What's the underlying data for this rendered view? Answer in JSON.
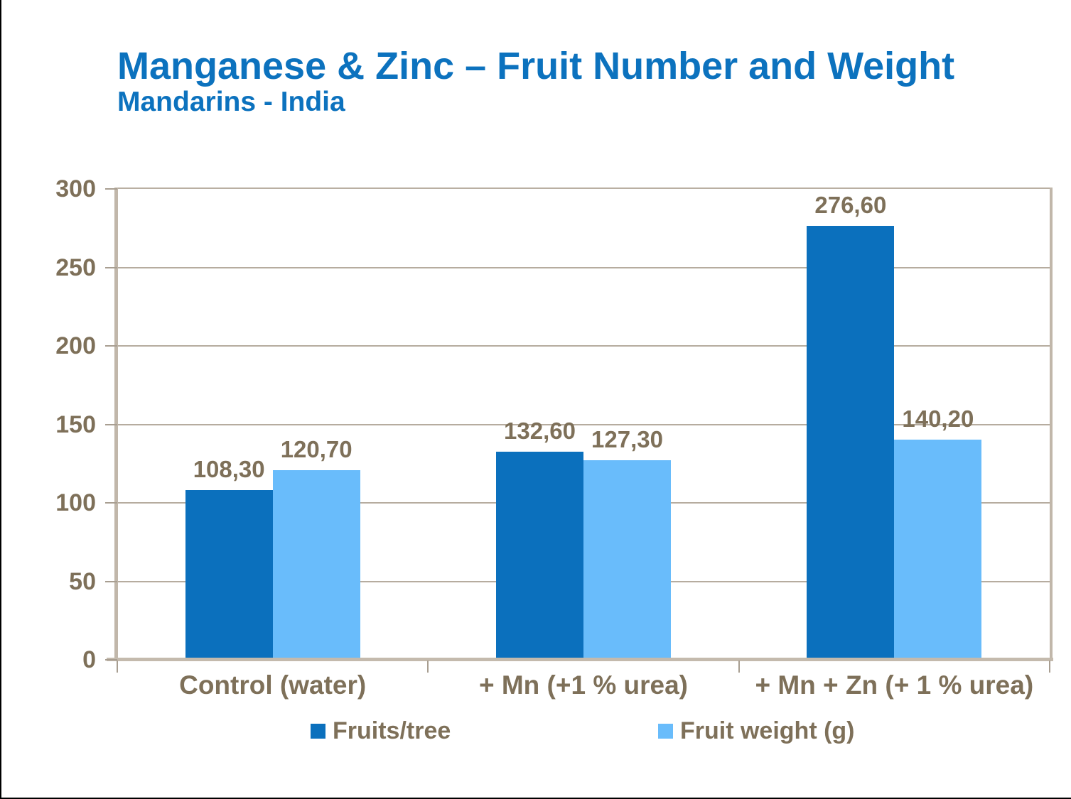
{
  "slide": {
    "title": "Manganese & Zinc – Fruit Number and Weight",
    "subtitle": "Mandarins - India"
  },
  "chart_data": {
    "type": "bar",
    "title": "Manganese & Zinc – Fruit Number and Weight",
    "subtitle": "Mandarins - India",
    "categories": [
      "Control (water)",
      "+ Mn (+1 % urea)",
      "+ Mn + Zn (+ 1 % urea)"
    ],
    "series": [
      {
        "name": "Fruits/tree",
        "color": "#0b70bd",
        "values": [
          108.3,
          132.6,
          276.6
        ],
        "labels": [
          "108,30",
          "132,60",
          "276,60"
        ]
      },
      {
        "name": "Fruit weight (g)",
        "color": "#69bcfb",
        "values": [
          120.7,
          127.3,
          140.2
        ],
        "labels": [
          "120,70",
          "127,30",
          "140,20"
        ]
      }
    ],
    "ylim": [
      0,
      300
    ],
    "ytick_step": 50,
    "ytick_labels": [
      "0",
      "50",
      "100",
      "150",
      "200",
      "250",
      "300"
    ],
    "xlabel": "",
    "ylabel": "",
    "grid": true,
    "legend_position": "bottom",
    "decimal_separator": ","
  },
  "colors": {
    "title_blue": "#0c72be",
    "label_brown": "#7e7059",
    "gridline_tan": "#b6ac9f",
    "frame_tan": "#c1b7aa",
    "tick_tan": "#a89e91",
    "series_dark_blue": "#0b70bd",
    "series_light_blue": "#69bcfb",
    "edge_black": "#000000"
  }
}
